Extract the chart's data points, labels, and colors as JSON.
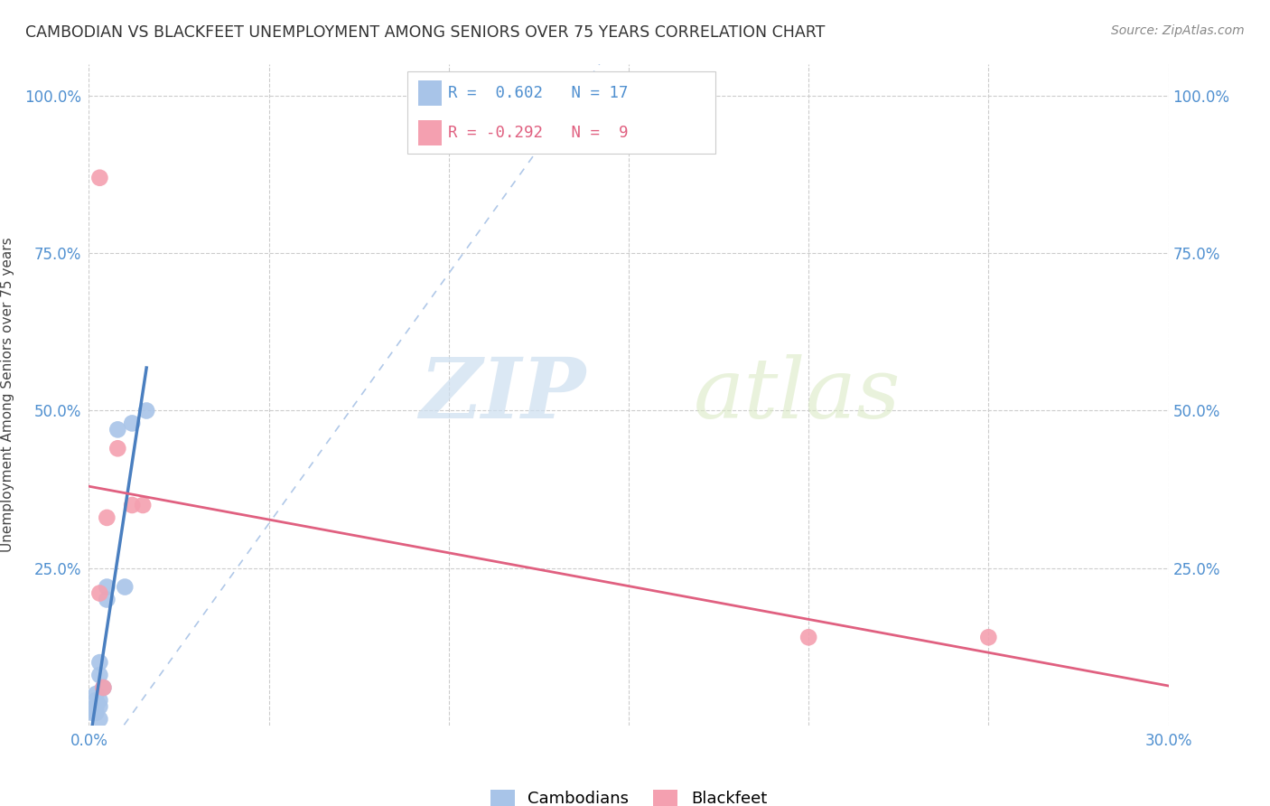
{
  "title": "CAMBODIAN VS BLACKFEET UNEMPLOYMENT AMONG SENIORS OVER 75 YEARS CORRELATION CHART",
  "source": "Source: ZipAtlas.com",
  "ylabel": "Unemployment Among Seniors over 75 years",
  "xlim": [
    0.0,
    0.3
  ],
  "ylim": [
    0.0,
    1.05
  ],
  "cambodian_color": "#a8c4e8",
  "blackfeet_color": "#f4a0b0",
  "cambodian_line_color": "#4a7fc0",
  "blackfeet_line_color": "#e06080",
  "trend_dashed_color": "#b0c8e8",
  "cambodian_R": 0.602,
  "cambodian_N": 17,
  "blackfeet_R": -0.292,
  "blackfeet_N": 9,
  "cambodian_x": [
    0.005,
    0.008,
    0.01,
    0.012,
    0.005,
    0.003,
    0.003,
    0.002,
    0.002,
    0.004,
    0.003,
    0.003,
    0.002,
    0.001,
    0.002,
    0.003,
    0.016
  ],
  "cambodian_y": [
    0.2,
    0.47,
    0.22,
    0.48,
    0.22,
    0.1,
    0.08,
    0.05,
    0.04,
    0.06,
    0.04,
    0.03,
    0.03,
    0.02,
    0.02,
    0.01,
    0.5
  ],
  "blackfeet_x": [
    0.003,
    0.005,
    0.008,
    0.012,
    0.015,
    0.003,
    0.004,
    0.2,
    0.25
  ],
  "blackfeet_y": [
    0.21,
    0.33,
    0.44,
    0.35,
    0.35,
    0.87,
    0.06,
    0.14,
    0.14
  ],
  "watermark_zip": "ZIP",
  "watermark_atlas": "atlas",
  "legend_R1": "R =  0.602   N = 17",
  "legend_R2": "R = -0.292   N =  9"
}
